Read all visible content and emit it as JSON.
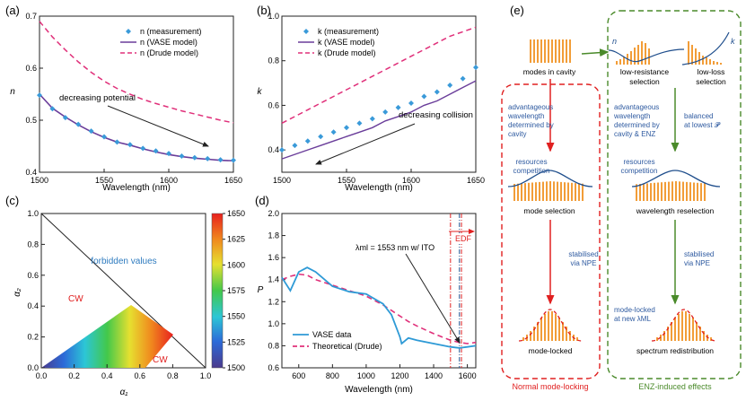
{
  "colors": {
    "meas": "#3a9ad9",
    "vase": "#6a3d9a",
    "drude": "#e0307a",
    "red": "#e02020",
    "green": "#4a8a2a",
    "blue": "#2e5aa0",
    "orange": "#f29d38",
    "curve": "#1f4e8c",
    "line_d": "#2e9ad6"
  },
  "panel_a": {
    "label": "(a)",
    "xlabel": "Wavelength (nm)",
    "ylabel": "n",
    "xticks": [
      "1500",
      "1550",
      "1600",
      "1650"
    ],
    "yticks": [
      "0.4",
      "0.5",
      "0.6",
      "0.7"
    ],
    "legend": [
      "n (measurement)",
      "n (VASE model)",
      "n (Drude model)"
    ],
    "annotation": "decreasing potential"
  },
  "panel_b": {
    "label": "(b)",
    "xlabel": "Wavelength (nm)",
    "ylabel": "k",
    "xticks": [
      "1500",
      "1550",
      "1600",
      "1650"
    ],
    "yticks": [
      "0.4",
      "0.6",
      "0.8",
      "1.0"
    ],
    "legend": [
      "k (measurement)",
      "k (VASE model)",
      "k (Drude model)"
    ],
    "annotation": "decreasing collision"
  },
  "panel_c": {
    "label": "(c)",
    "xlabel": "α₁",
    "ylabel": "α₂",
    "xticks": [
      "0.0",
      "0.2",
      "0.4",
      "0.6",
      "0.8",
      "1.0"
    ],
    "yticks": [
      "0.0",
      "0.2",
      "0.4",
      "0.6",
      "0.8",
      "1.0"
    ],
    "forbidden": "forbidden values",
    "cw_top": "CW",
    "cw_bottom": "CW",
    "colorbar": [
      "1650",
      "1625",
      "1600",
      "1575",
      "1550",
      "1525",
      "1500"
    ]
  },
  "panel_d": {
    "label": "(d)",
    "xlabel": "Wavelength (nm)",
    "ylabel": "P",
    "xticks": [
      "600",
      "800",
      "1000",
      "1200",
      "1400",
      "1600"
    ],
    "yticks": [
      "0.6",
      "0.8",
      "1.0",
      "1.2",
      "1.4",
      "1.6",
      "1.8",
      "2.0"
    ],
    "annotation": "λml = 1553 nm w/ ITO",
    "edf": "EDF",
    "legend": [
      "VASE data",
      "Theoretical (Drude)"
    ]
  },
  "panel_e": {
    "label": "(e)",
    "modes": "modes in cavity",
    "n_mark": "n",
    "k_mark": "k",
    "low_res": "low-resistance selection",
    "low_loss": "low-loss selection",
    "adv1": "advantageous wavelength determined by cavity",
    "adv2": "advantageous wavelength determined by cavity & ENZ",
    "balanced": "balanced at lowest P",
    "res1": "resources competition",
    "res2": "resources competition",
    "mode_sel": "mode selection",
    "wav_resel": "wavelength reselection",
    "stab1": "stabilised via NPE",
    "stab2": "stabilised via NPE",
    "mode_locked": "mode-locked",
    "ml_new": "mode-locked at new λML",
    "spectrum": "spectrum redistribution",
    "normal": "Normal mode-locking",
    "enz": "ENZ-induced effects"
  },
  "chart_data": [
    {
      "type": "line",
      "title": "(a)",
      "xlabel": "Wavelength (nm)",
      "ylabel": "n",
      "xlim": [
        1500,
        1650
      ],
      "ylim": [
        0.4,
        0.7
      ],
      "x": [
        1500,
        1510,
        1520,
        1530,
        1540,
        1550,
        1560,
        1570,
        1580,
        1590,
        1600,
        1610,
        1620,
        1630,
        1640,
        1650
      ],
      "series": [
        {
          "name": "n (measurement)",
          "values": [
            0.548,
            0.522,
            0.505,
            0.492,
            0.479,
            0.468,
            0.458,
            0.453,
            0.446,
            0.441,
            0.436,
            0.431,
            0.428,
            0.426,
            0.424,
            0.423
          ]
        },
        {
          "name": "n (VASE model)",
          "values": [
            0.55,
            0.523,
            0.506,
            0.491,
            0.478,
            0.467,
            0.458,
            0.452,
            0.445,
            0.439,
            0.434,
            0.43,
            0.427,
            0.425,
            0.423,
            0.422
          ]
        },
        {
          "name": "n (Drude model)",
          "values": [
            0.69,
            0.66,
            0.635,
            0.612,
            0.592,
            0.575,
            0.561,
            0.55,
            0.54,
            0.532,
            0.525,
            0.518,
            0.512,
            0.506,
            0.5,
            0.495
          ]
        }
      ]
    },
    {
      "type": "line",
      "title": "(b)",
      "xlabel": "Wavelength (nm)",
      "ylabel": "k",
      "xlim": [
        1500,
        1650
      ],
      "ylim": [
        0.3,
        1.0
      ],
      "x": [
        1500,
        1510,
        1520,
        1530,
        1540,
        1550,
        1560,
        1570,
        1580,
        1590,
        1600,
        1610,
        1620,
        1630,
        1640,
        1650
      ],
      "series": [
        {
          "name": "k (measurement)",
          "values": [
            0.4,
            0.42,
            0.44,
            0.46,
            0.48,
            0.5,
            0.52,
            0.54,
            0.57,
            0.59,
            0.61,
            0.64,
            0.66,
            0.69,
            0.72,
            0.77
          ]
        },
        {
          "name": "k (VASE model)",
          "values": [
            0.36,
            0.38,
            0.4,
            0.42,
            0.44,
            0.46,
            0.48,
            0.5,
            0.53,
            0.55,
            0.57,
            0.6,
            0.62,
            0.65,
            0.68,
            0.71
          ]
        },
        {
          "name": "k (Drude model)",
          "values": [
            0.52,
            0.55,
            0.58,
            0.61,
            0.64,
            0.67,
            0.7,
            0.73,
            0.76,
            0.79,
            0.82,
            0.85,
            0.88,
            0.91,
            0.93,
            0.95
          ]
        }
      ]
    },
    {
      "type": "heatmap",
      "title": "(c)",
      "xlabel": "α₁",
      "ylabel": "α₂",
      "xlim": [
        0,
        1
      ],
      "ylim": [
        0,
        1
      ],
      "colorbar_range": [
        1500,
        1650
      ],
      "labels": [
        "forbidden values",
        "CW",
        "CW"
      ]
    },
    {
      "type": "line",
      "title": "(d)",
      "xlabel": "Wavelength (nm)",
      "ylabel": "P",
      "xlim": [
        500,
        1650
      ],
      "ylim": [
        0.6,
        2.0
      ],
      "x": [
        500,
        550,
        600,
        650,
        700,
        800,
        900,
        1000,
        1100,
        1150,
        1200,
        1210,
        1250,
        1300,
        1400,
        1500,
        1553,
        1600,
        1650
      ],
      "series": [
        {
          "name": "VASE data",
          "values": [
            1.42,
            1.3,
            1.47,
            1.51,
            1.47,
            1.34,
            1.29,
            1.27,
            1.18,
            1.08,
            0.88,
            0.82,
            0.87,
            0.85,
            0.82,
            0.79,
            0.78,
            0.79,
            0.8
          ]
        },
        {
          "name": "Theoretical (Drude)",
          "values": [
            1.4,
            1.43,
            1.45,
            1.44,
            1.4,
            1.35,
            1.3,
            1.25,
            1.17,
            1.12,
            1.07,
            1.06,
            1.02,
            0.98,
            0.91,
            0.85,
            0.83,
            0.82,
            0.83
          ]
        }
      ],
      "vlines": [
        1500,
        1553,
        1565
      ]
    }
  ]
}
